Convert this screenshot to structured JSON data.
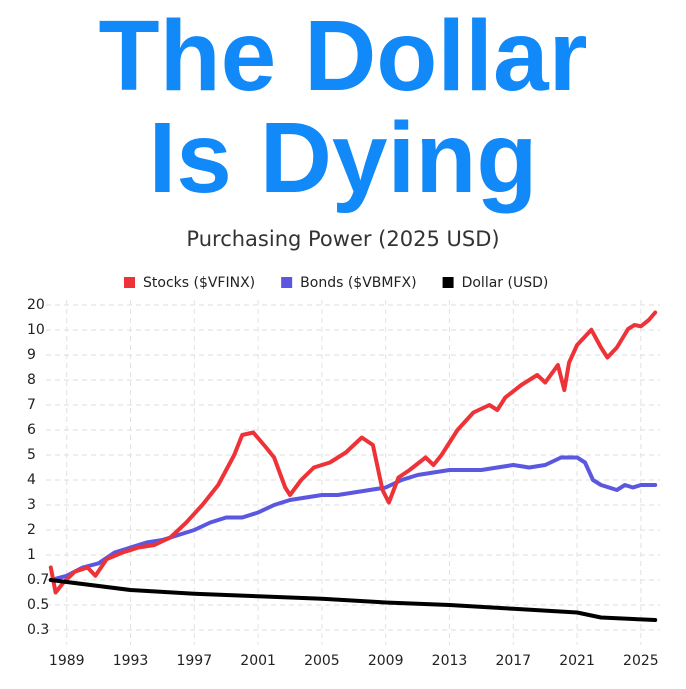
{
  "chart_data": {
    "type": "line",
    "title": "The Dollar Is Dying",
    "subtitle": "Purchasing Power (2025 USD)",
    "yscale": "even-ticks",
    "grid": true,
    "legend": "top",
    "xlim": [
      1987.7,
      2026.2
    ],
    "xticks": [
      1989,
      1993,
      1997,
      2001,
      2005,
      2009,
      2013,
      2017,
      2021,
      2025
    ],
    "ylim": [
      0.3,
      20
    ],
    "yticks": [
      0.3,
      0.5,
      0.7,
      1,
      2,
      3,
      4,
      5,
      6,
      7,
      8,
      9,
      10,
      20
    ],
    "series": [
      {
        "name": "Stocks ($VFINX)",
        "color": "#ee3338",
        "x": [
          1988.0,
          1988.3,
          1988.8,
          1989.5,
          1990.3,
          1990.8,
          1991.5,
          1992.5,
          1993.5,
          1994.5,
          1995.5,
          1996.5,
          1997.5,
          1998.5,
          1999.5,
          2000.0,
          2000.7,
          2001.5,
          2002.0,
          2002.7,
          2003.0,
          2003.7,
          2004.5,
          2005.5,
          2006.5,
          2007.5,
          2008.2,
          2008.8,
          2009.2,
          2009.8,
          2010.5,
          2011.5,
          2012.0,
          2012.5,
          2013.5,
          2014.5,
          2015.5,
          2016.0,
          2016.5,
          2017.5,
          2018.5,
          2019.0,
          2019.8,
          2020.2,
          2020.5,
          2021.0,
          2021.9,
          2022.5,
          2022.9,
          2023.5,
          2024.2,
          2024.6,
          2025.0,
          2025.5,
          2025.9
        ],
        "values": [
          0.85,
          0.6,
          0.68,
          0.8,
          0.85,
          0.75,
          0.95,
          1.1,
          1.3,
          1.4,
          1.7,
          2.3,
          3.0,
          3.8,
          5.0,
          5.8,
          5.9,
          5.3,
          4.9,
          3.7,
          3.4,
          4.0,
          4.5,
          4.7,
          5.1,
          5.7,
          5.4,
          3.6,
          3.1,
          4.1,
          4.4,
          4.9,
          4.6,
          5.0,
          6.0,
          6.7,
          7.0,
          6.8,
          7.3,
          7.8,
          8.2,
          7.9,
          8.6,
          7.6,
          8.7,
          9.4,
          10.1,
          9.3,
          8.9,
          9.3,
          10.4,
          12,
          11.5,
          14,
          17
        ]
      },
      {
        "name": "Bonds ($VBMFX)",
        "color": "#5b57e0",
        "x": [
          1988,
          1989,
          1990,
          1991,
          1992,
          1993,
          1994,
          1995,
          1996,
          1997,
          1998,
          1999,
          2000,
          2001,
          2002,
          2003,
          2004,
          2005,
          2006,
          2007,
          2008,
          2009,
          2010,
          2011,
          2012,
          2013,
          2014,
          2015,
          2016,
          2017,
          2018,
          2019,
          2020,
          2021,
          2021.5,
          2022,
          2022.5,
          2023,
          2023.5,
          2024,
          2024.5,
          2025,
          2025.9
        ],
        "values": [
          0.7,
          0.75,
          0.85,
          0.9,
          1.1,
          1.3,
          1.5,
          1.6,
          1.8,
          2.0,
          2.3,
          2.5,
          2.5,
          2.7,
          3.0,
          3.2,
          3.3,
          3.4,
          3.4,
          3.5,
          3.6,
          3.7,
          4.0,
          4.2,
          4.3,
          4.4,
          4.4,
          4.4,
          4.5,
          4.6,
          4.5,
          4.6,
          4.9,
          4.9,
          4.7,
          4.0,
          3.8,
          3.7,
          3.6,
          3.8,
          3.7,
          3.8,
          3.8
        ]
      },
      {
        "name": "Dollar (USD)",
        "color": "#000000",
        "x": [
          1988,
          1993,
          1997,
          2001,
          2005,
          2009,
          2013,
          2017,
          2021,
          2022.5,
          2025.9
        ],
        "values": [
          0.7,
          0.62,
          0.59,
          0.57,
          0.55,
          0.52,
          0.5,
          0.47,
          0.44,
          0.4,
          0.38
        ]
      }
    ]
  }
}
